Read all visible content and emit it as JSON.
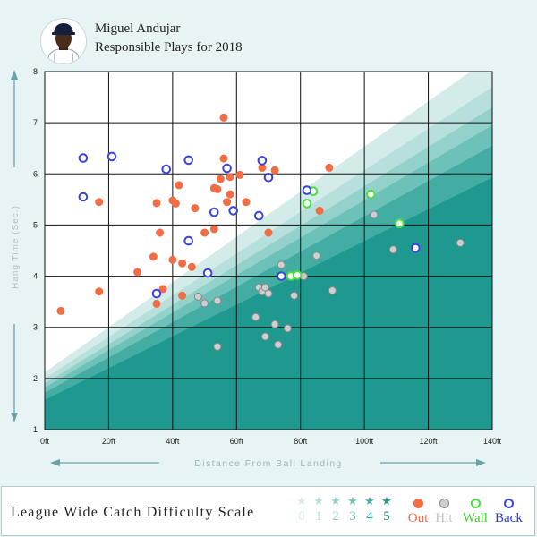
{
  "header": {
    "player_name": "Miguel Andujar",
    "chart_title": "Responsible Plays for 2018"
  },
  "legend": {
    "label": "League Wide Catch Difficulty Scale",
    "stars": [
      {
        "label": "0",
        "color": "#d3ecea"
      },
      {
        "label": "1",
        "color": "#b7e0dc"
      },
      {
        "label": "2",
        "color": "#93d1cb"
      },
      {
        "label": "3",
        "color": "#6cc1b8"
      },
      {
        "label": "4",
        "color": "#43ada3"
      },
      {
        "label": "5",
        "color": "#1f998f"
      }
    ],
    "outcomes": [
      {
        "label": "Out",
        "fill": "#f26d45",
        "stroke": "#f26d45",
        "text_color": "#f26d45"
      },
      {
        "label": "Hit",
        "fill": "#cfcfcf",
        "stroke": "#888888",
        "text_color": "#c4c4c4"
      },
      {
        "label": "Wall",
        "fill": "#ffffff",
        "stroke": "#48e040",
        "text_color": "#3acc2f"
      },
      {
        "label": "Back",
        "fill": "#ffffff",
        "stroke": "#3a44e0",
        "text_color": "#2f3ad6"
      }
    ]
  },
  "chart_data": {
    "type": "scatter",
    "xlabel": "Distance From Ball Landing",
    "ylabel": "Hang Time (Sec.)",
    "xlim": [
      0,
      140
    ],
    "ylim": [
      1,
      8
    ],
    "xticks": [
      "0ft",
      "20ft",
      "40ft",
      "60ft",
      "80ft",
      "100ft",
      "120ft",
      "140ft"
    ],
    "xtick_values": [
      0,
      20,
      40,
      60,
      80,
      100,
      120,
      140
    ],
    "yticks": [
      "1",
      "2",
      "3",
      "4",
      "5",
      "6",
      "7",
      "8"
    ],
    "ytick_values": [
      1,
      2,
      3,
      4,
      5,
      6,
      7,
      8
    ],
    "grid": true,
    "difficulty_bands": [
      {
        "star": "0",
        "color": "#d3ecea",
        "line": [
          [
            0,
            2.12
          ],
          [
            140,
            8.3
          ]
        ]
      },
      {
        "star": "1",
        "color": "#b7e0dc",
        "line": [
          [
            0,
            2.0
          ],
          [
            140,
            7.7
          ]
        ]
      },
      {
        "star": "2",
        "color": "#93d1cb",
        "line": [
          [
            0,
            1.9
          ],
          [
            140,
            7.3
          ]
        ]
      },
      {
        "star": "3",
        "color": "#6cc1b8",
        "line": [
          [
            0,
            1.82
          ],
          [
            140,
            6.95
          ]
        ]
      },
      {
        "star": "4",
        "color": "#43ada3",
        "line": [
          [
            0,
            1.72
          ],
          [
            140,
            6.55
          ]
        ]
      },
      {
        "star": "5",
        "color": "#1f998f",
        "line": [
          [
            0,
            1.58
          ],
          [
            140,
            5.93
          ]
        ]
      }
    ],
    "series": [
      {
        "name": "Out",
        "points": [
          [
            5,
            3.32
          ],
          [
            17,
            3.7
          ],
          [
            17,
            5.45
          ],
          [
            29,
            4.08
          ],
          [
            34,
            4.38
          ],
          [
            35,
            3.46
          ],
          [
            35,
            5.43
          ],
          [
            36,
            4.85
          ],
          [
            37,
            3.75
          ],
          [
            40,
            5.48
          ],
          [
            40,
            4.32
          ],
          [
            41,
            5.42
          ],
          [
            42,
            5.78
          ],
          [
            43,
            3.62
          ],
          [
            43,
            4.25
          ],
          [
            46,
            4.18
          ],
          [
            47,
            5.33
          ],
          [
            50,
            4.85
          ],
          [
            53,
            4.92
          ],
          [
            53,
            5.72
          ],
          [
            54,
            5.7
          ],
          [
            55,
            5.9
          ],
          [
            56,
            6.3
          ],
          [
            56,
            7.1
          ],
          [
            57,
            5.45
          ],
          [
            58,
            5.94
          ],
          [
            58,
            5.6
          ],
          [
            61,
            5.98
          ],
          [
            63,
            5.45
          ],
          [
            68,
            6.12
          ],
          [
            70,
            4.85
          ],
          [
            72,
            6.07
          ],
          [
            86,
            5.28
          ],
          [
            89,
            6.12
          ]
        ]
      },
      {
        "name": "Hit",
        "points": [
          [
            48,
            3.6
          ],
          [
            50,
            3.47
          ],
          [
            54,
            3.52
          ],
          [
            54,
            2.62
          ],
          [
            66,
            3.2
          ],
          [
            67,
            3.78
          ],
          [
            68,
            3.7
          ],
          [
            69,
            2.82
          ],
          [
            69,
            3.78
          ],
          [
            70,
            3.66
          ],
          [
            72,
            3.06
          ],
          [
            73,
            2.66
          ],
          [
            74,
            4.22
          ],
          [
            76,
            2.98
          ],
          [
            78,
            3.62
          ],
          [
            81,
            4.0
          ],
          [
            85,
            4.4
          ],
          [
            90,
            3.72
          ],
          [
            103,
            5.2
          ],
          [
            109,
            4.52
          ],
          [
            130,
            4.65
          ]
        ]
      },
      {
        "name": "Wall",
        "points": [
          [
            77,
            4.0
          ],
          [
            79,
            4.02
          ],
          [
            82,
            5.42
          ],
          [
            84,
            5.66
          ],
          [
            102,
            5.6
          ],
          [
            111,
            5.03
          ]
        ]
      },
      {
        "name": "Back",
        "points": [
          [
            12,
            6.31
          ],
          [
            12,
            5.55
          ],
          [
            21,
            6.34
          ],
          [
            35,
            3.66
          ],
          [
            38,
            6.09
          ],
          [
            45,
            6.27
          ],
          [
            45,
            4.69
          ],
          [
            51,
            4.06
          ],
          [
            53,
            5.25
          ],
          [
            57,
            6.11
          ],
          [
            59,
            5.28
          ],
          [
            67,
            5.18
          ],
          [
            68,
            6.26
          ],
          [
            70,
            5.93
          ],
          [
            74,
            4.0
          ],
          [
            82,
            5.68
          ],
          [
            116,
            4.55
          ]
        ]
      }
    ]
  }
}
